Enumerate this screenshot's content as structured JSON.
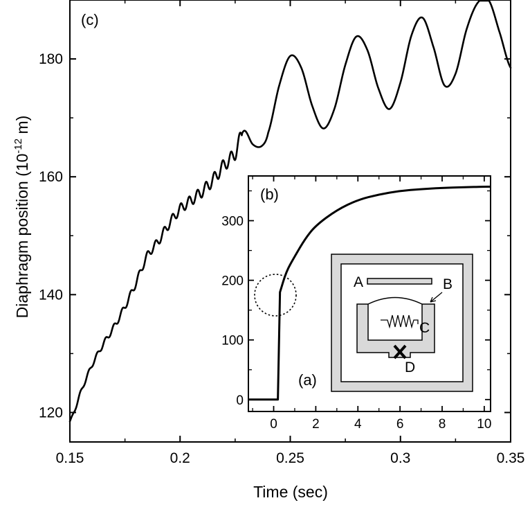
{
  "chart_data": [
    {
      "panel": "(c)",
      "type": "line",
      "xlabel": "Time (sec)",
      "ylabel": "Diaphragm position (10-12 m)",
      "ylabel_parts": {
        "main": "Diaphragm position (10",
        "exp": "-12",
        "unit": " m)"
      },
      "xlim": [
        0.15,
        0.35
      ],
      "ylim": [
        115,
        190
      ],
      "xticks": [
        0.15,
        0.2,
        0.25,
        0.3,
        0.35
      ],
      "xtick_labels": [
        "0.15",
        "0.2",
        "0.25",
        "0.3",
        "0.35"
      ],
      "yticks": [
        120,
        140,
        160,
        180
      ],
      "ytick_labels": [
        "120",
        "140",
        "160",
        "180"
      ],
      "grid": false,
      "series": [
        {
          "x": [
            0.15,
            0.155,
            0.16,
            0.165,
            0.17,
            0.175,
            0.18,
            0.185,
            0.19,
            0.195,
            0.2,
            0.205,
            0.21,
            0.215,
            0.22,
            0.225,
            0.229,
            0.233,
            0.237,
            0.24,
            0.245,
            0.25,
            0.255,
            0.26,
            0.265,
            0.27,
            0.275,
            0.28,
            0.285,
            0.29,
            0.295,
            0.3,
            0.305,
            0.31,
            0.315,
            0.32,
            0.325,
            0.33,
            0.335,
            0.34,
            0.345,
            0.35
          ],
          "y": [
            118.5,
            123.5,
            128.0,
            131.5,
            134.5,
            138.0,
            142.0,
            146.5,
            149.0,
            152.0,
            154.5,
            156.0,
            157.5,
            159.5,
            162.0,
            164.0,
            167.8,
            165.5,
            165.2,
            167.5,
            175.5,
            180.5,
            178.5,
            172.0,
            168.2,
            171.5,
            179.0,
            183.8,
            181.5,
            175.0,
            171.5,
            176.0,
            184.0,
            187.0,
            182.0,
            175.5,
            177.5,
            185.0,
            189.5,
            190.0,
            184.5,
            178.5
          ]
        }
      ]
    },
    {
      "panel": "(b)",
      "type": "line",
      "xlim": [
        -1.2,
        10.3
      ],
      "ylim": [
        -20,
        375
      ],
      "xticks": [
        0,
        2,
        4,
        6,
        8,
        10
      ],
      "xtick_labels": [
        "0",
        "2",
        "4",
        "6",
        "8",
        "10"
      ],
      "yticks": [
        0,
        100,
        200,
        300
      ],
      "ytick_labels": [
        "0",
        "100",
        "200",
        "300"
      ],
      "grid": false,
      "series": [
        {
          "x": [
            -1.2,
            0.2,
            0.3,
            0.6,
            1.0,
            1.5,
            2.0,
            3.0,
            4.0,
            5.0,
            6.0,
            7.0,
            8.0,
            9.0,
            10.0,
            10.3
          ],
          "y": [
            0,
            0,
            180,
            215,
            240,
            270,
            292,
            318,
            335,
            344,
            350,
            353,
            355,
            356,
            357,
            357
          ]
        }
      ],
      "annotations": [
        "dotted circle around the initial rise near t = 0.3"
      ]
    }
  ],
  "schematic": {
    "panel_label": "(a)",
    "labels": {
      "A": "A",
      "B": "B",
      "C": "C",
      "D": "D"
    }
  }
}
